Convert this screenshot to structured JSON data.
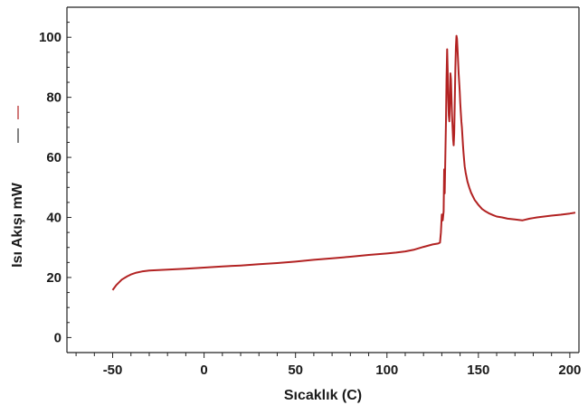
{
  "chart_data": {
    "type": "line",
    "title": "",
    "xlabel": "Sıcaklık (C)",
    "ylabel": "Isı Akışı mW",
    "xlim": [
      -75,
      205
    ],
    "ylim": [
      -5,
      110
    ],
    "xticks": [
      -50,
      0,
      50,
      100,
      150,
      200
    ],
    "yticks": [
      0,
      20,
      40,
      60,
      80,
      100
    ],
    "x_tick_labels": [
      "-50",
      "0",
      "50",
      "100",
      "150",
      "200"
    ],
    "y_tick_labels": [
      "0",
      "20",
      "40",
      "60",
      "80",
      "100"
    ],
    "grid": false,
    "legend": "none",
    "series": [
      {
        "color": "#b22222",
        "x": [
          -50,
          -48,
          -45,
          -42,
          -40,
          -37,
          -34,
          -30,
          -25,
          -20,
          -10,
          0,
          10,
          20,
          30,
          40,
          50,
          60,
          70,
          80,
          90,
          100,
          105,
          110,
          115,
          120,
          125,
          128,
          129,
          129.5,
          130,
          130.5,
          131,
          131.3,
          131.6,
          132,
          132.3,
          132.6,
          132.9,
          133.2,
          133.5,
          133.8,
          134.1,
          134.4,
          134.7,
          135,
          135.3,
          135.6,
          135.9,
          136.2,
          136.5,
          136.8,
          137.1,
          137.4,
          137.7,
          138,
          138.3,
          138.6,
          138.9,
          139.2,
          139.5,
          139.8,
          140.1,
          140.4,
          140.7,
          141,
          141.3,
          141.6,
          141.9,
          142.2,
          142.5,
          143,
          143.5,
          144,
          145,
          146,
          147,
          148,
          149,
          150,
          152,
          154,
          156,
          158,
          160,
          163,
          166,
          170,
          174,
          178,
          180,
          182,
          186,
          190,
          195,
          200,
          203
        ],
        "y": [
          15.8,
          17.5,
          19.3,
          20.4,
          21.0,
          21.6,
          22.0,
          22.3,
          22.5,
          22.6,
          22.9,
          23.3,
          23.7,
          24.0,
          24.4,
          24.8,
          25.3,
          25.9,
          26.4,
          26.9,
          27.5,
          28.0,
          28.3,
          28.7,
          29.3,
          30.2,
          31.0,
          31.3,
          31.6,
          35.0,
          41.0,
          39.0,
          42.0,
          56.0,
          48.0,
          62.0,
          72.0,
          86.0,
          96.0,
          89.0,
          80.0,
          74.0,
          72.0,
          78.0,
          88.0,
          86.0,
          80.0,
          74.0,
          70.0,
          66.0,
          64.0,
          68.0,
          78.0,
          90.0,
          97.0,
          100.5,
          99.5,
          96.0,
          92.0,
          88.0,
          85.0,
          82.0,
          78.0,
          75.0,
          72.0,
          70.0,
          67.0,
          64.0,
          61.5,
          59.0,
          57.0,
          55.0,
          53.5,
          52.0,
          50.0,
          48.3,
          47.0,
          45.8,
          45.0,
          44.2,
          42.8,
          42.0,
          41.3,
          40.8,
          40.3,
          40.0,
          39.6,
          39.3,
          39.0,
          39.6,
          39.8,
          40.0,
          40.3,
          40.6,
          40.9,
          41.3,
          41.6
        ]
      }
    ]
  }
}
